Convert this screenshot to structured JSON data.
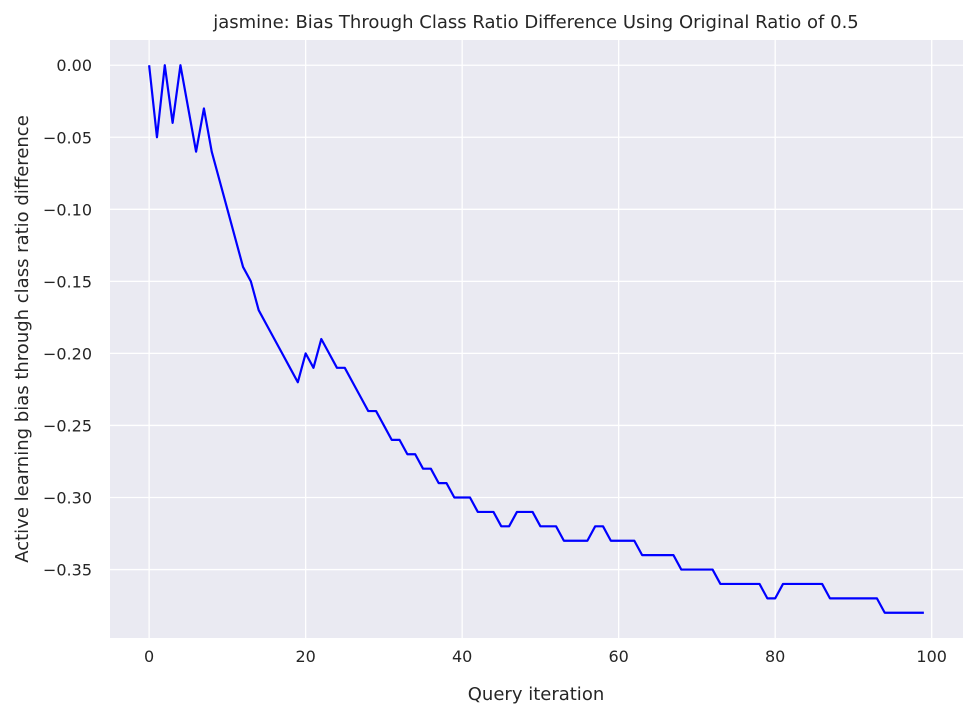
{
  "chart_data": {
    "type": "line",
    "title": "jasmine: Bias Through Class Ratio Difference Using Original Ratio of 0.5",
    "xlabel": "Query iteration",
    "ylabel": "Active learning bias through class ratio difference",
    "xlim": [
      -5,
      104
    ],
    "ylim": [
      -0.3975,
      0.0175
    ],
    "xticks": [
      0,
      20,
      40,
      60,
      80,
      100
    ],
    "xtick_labels": [
      "0",
      "20",
      "40",
      "60",
      "80",
      "100"
    ],
    "yticks": [
      0.0,
      -0.05,
      -0.1,
      -0.15,
      -0.2,
      -0.25,
      -0.3,
      -0.35
    ],
    "ytick_labels": [
      "0.00",
      "−0.05",
      "−0.10",
      "−0.15",
      "−0.20",
      "−0.25",
      "−0.30",
      "−0.35"
    ],
    "grid": true,
    "colors": {
      "background": "#eaeaf2",
      "grid": "#ffffff",
      "line": "#0000ff"
    },
    "series": [
      {
        "x": [
          0,
          1,
          2,
          3,
          4,
          5,
          6,
          7,
          8,
          9,
          10,
          11,
          12,
          13,
          14,
          15,
          16,
          17,
          18,
          19,
          20,
          21,
          22,
          23,
          24,
          25,
          26,
          27,
          28,
          29,
          30,
          31,
          32,
          33,
          34,
          35,
          36,
          37,
          38,
          39,
          40,
          41,
          42,
          43,
          44,
          45,
          46,
          47,
          48,
          49,
          50,
          51,
          52,
          53,
          54,
          55,
          56,
          57,
          58,
          59,
          60,
          61,
          62,
          63,
          64,
          65,
          66,
          67,
          68,
          69,
          70,
          71,
          72,
          73,
          74,
          75,
          76,
          77,
          78,
          79,
          80,
          81,
          82,
          83,
          84,
          85,
          86,
          87,
          88,
          89,
          90,
          91,
          92,
          93,
          94,
          95,
          96,
          97,
          98,
          99
        ],
        "values": [
          0.0,
          -0.05,
          0.0,
          -0.04,
          0.0,
          -0.03,
          -0.06,
          -0.03,
          -0.06,
          -0.08,
          -0.1,
          -0.12,
          -0.14,
          -0.15,
          -0.17,
          -0.18,
          -0.19,
          -0.2,
          -0.21,
          -0.22,
          -0.2,
          -0.21,
          -0.19,
          -0.2,
          -0.21,
          -0.21,
          -0.22,
          -0.23,
          -0.24,
          -0.24,
          -0.25,
          -0.26,
          -0.26,
          -0.27,
          -0.27,
          -0.28,
          -0.28,
          -0.29,
          -0.29,
          -0.3,
          -0.3,
          -0.3,
          -0.31,
          -0.31,
          -0.31,
          -0.32,
          -0.32,
          -0.31,
          -0.31,
          -0.31,
          -0.32,
          -0.32,
          -0.32,
          -0.33,
          -0.33,
          -0.33,
          -0.33,
          -0.32,
          -0.32,
          -0.33,
          -0.33,
          -0.33,
          -0.33,
          -0.34,
          -0.34,
          -0.34,
          -0.34,
          -0.34,
          -0.35,
          -0.35,
          -0.35,
          -0.35,
          -0.35,
          -0.36,
          -0.36,
          -0.36,
          -0.36,
          -0.36,
          -0.36,
          -0.37,
          -0.37,
          -0.36,
          -0.36,
          -0.36,
          -0.36,
          -0.36,
          -0.36,
          -0.37,
          -0.37,
          -0.37,
          -0.37,
          -0.37,
          -0.37,
          -0.37,
          -0.38,
          -0.38,
          -0.38,
          -0.38,
          -0.38,
          -0.38
        ]
      }
    ]
  }
}
